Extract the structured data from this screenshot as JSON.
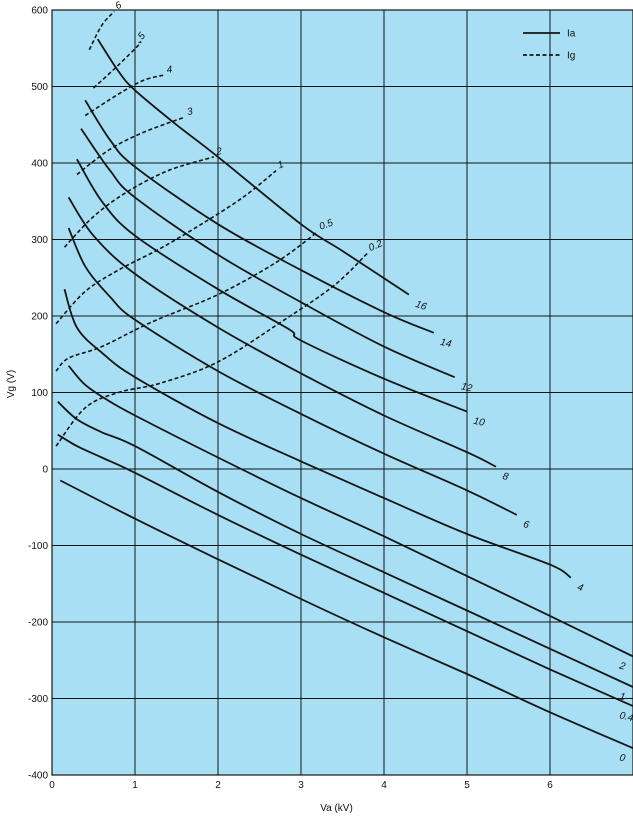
{
  "chart_data": {
    "type": "line",
    "title": "",
    "xlabel": "Va (kV)",
    "ylabel": "Vg (V)",
    "xlim": [
      0,
      7
    ],
    "ylim": [
      -400,
      600
    ],
    "x_ticks": [
      "0",
      "1",
      "2",
      "3",
      "4",
      "5",
      "6"
    ],
    "y_ticks": [
      "-400",
      "-300",
      "-200",
      "-100",
      "0",
      "100",
      "200",
      "300",
      "400",
      "500",
      "600"
    ],
    "grid": true,
    "legend_position": "top-right",
    "colors": {
      "plot_background": "#a8dff5",
      "line": "#151515",
      "grid": "#151515"
    },
    "legend": [
      {
        "label": "Ia",
        "style": "solid"
      },
      {
        "label": "Ig",
        "style": "dashed"
      }
    ],
    "series": [
      {
        "family": "Ia",
        "label": "0",
        "style": "solid",
        "points": [
          [
            0.1,
            -15
          ],
          [
            1,
            -65
          ],
          [
            2,
            -118
          ],
          [
            3,
            -170
          ],
          [
            4,
            -220
          ],
          [
            5,
            -268
          ],
          [
            6,
            -318
          ],
          [
            7,
            -365
          ]
        ]
      },
      {
        "family": "Ia",
        "label": "0.4",
        "style": "solid",
        "points": [
          [
            0.07,
            45
          ],
          [
            0.3,
            30
          ],
          [
            0.6,
            15
          ],
          [
            1,
            -5
          ],
          [
            2,
            -60
          ],
          [
            3,
            -112
          ],
          [
            4,
            -162
          ],
          [
            5,
            -212
          ],
          [
            6,
            -262
          ],
          [
            7,
            -310
          ]
        ]
      },
      {
        "family": "Ia",
        "label": "1",
        "style": "solid",
        "points": [
          [
            0.07,
            88
          ],
          [
            0.3,
            65
          ],
          [
            0.6,
            48
          ],
          [
            1,
            30
          ],
          [
            2,
            -30
          ],
          [
            3,
            -85
          ],
          [
            4,
            -135
          ],
          [
            5,
            -185
          ],
          [
            6,
            -235
          ],
          [
            7,
            -285
          ]
        ]
      },
      {
        "family": "Ia",
        "label": "2",
        "style": "solid",
        "points": [
          [
            0.2,
            135
          ],
          [
            0.4,
            110
          ],
          [
            0.7,
            88
          ],
          [
            1,
            70
          ],
          [
            2,
            15
          ],
          [
            3,
            -38
          ],
          [
            4,
            -88
          ],
          [
            5,
            -140
          ],
          [
            6,
            -192
          ],
          [
            7,
            -245
          ]
        ]
      },
      {
        "family": "Ia",
        "label": "4",
        "style": "solid",
        "points": [
          [
            0.15,
            235
          ],
          [
            0.3,
            185
          ],
          [
            0.6,
            152
          ],
          [
            1,
            120
          ],
          [
            2,
            60
          ],
          [
            3,
            10
          ],
          [
            4,
            -38
          ],
          [
            5,
            -85
          ],
          [
            6,
            -125
          ],
          [
            6.25,
            -142
          ]
        ]
      },
      {
        "family": "Ia",
        "label": "6",
        "style": "solid",
        "points": [
          [
            0.2,
            315
          ],
          [
            0.4,
            265
          ],
          [
            0.7,
            225
          ],
          [
            1,
            195
          ],
          [
            2,
            128
          ],
          [
            3,
            72
          ],
          [
            4,
            20
          ],
          [
            5,
            -28
          ],
          [
            5.6,
            -60
          ]
        ]
      },
      {
        "family": "Ia",
        "label": "8",
        "style": "solid",
        "points": [
          [
            0.2,
            355
          ],
          [
            0.5,
            305
          ],
          [
            1,
            255
          ],
          [
            2,
            185
          ],
          [
            3,
            125
          ],
          [
            4,
            70
          ],
          [
            5,
            22
          ],
          [
            5.35,
            3
          ]
        ]
      },
      {
        "family": "Ia",
        "label": "10",
        "style": "solid",
        "points": [
          [
            0.3,
            405
          ],
          [
            0.6,
            350
          ],
          [
            1,
            305
          ],
          [
            2,
            235
          ],
          [
            2.85,
            183
          ],
          [
            3,
            168
          ],
          [
            4,
            118
          ],
          [
            5,
            75
          ]
        ]
      },
      {
        "family": "Ia",
        "label": "12",
        "style": "solid",
        "points": [
          [
            0.35,
            445
          ],
          [
            0.7,
            390
          ],
          [
            1,
            355
          ],
          [
            2,
            280
          ],
          [
            3,
            218
          ],
          [
            4,
            160
          ],
          [
            4.85,
            120
          ]
        ]
      },
      {
        "family": "Ia",
        "label": "14",
        "style": "solid",
        "points": [
          [
            0.4,
            482
          ],
          [
            0.7,
            430
          ],
          [
            1,
            395
          ],
          [
            2,
            320
          ],
          [
            3,
            260
          ],
          [
            4,
            205
          ],
          [
            4.6,
            178
          ]
        ]
      },
      {
        "family": "Ia",
        "label": "16",
        "style": "solid",
        "points": [
          [
            0.55,
            562
          ],
          [
            0.8,
            520
          ],
          [
            1,
            495
          ],
          [
            1.5,
            450
          ],
          [
            2,
            408
          ],
          [
            3,
            320
          ],
          [
            3.5,
            285
          ],
          [
            4.3,
            228
          ]
        ]
      },
      {
        "family": "Ig",
        "label": "0.2",
        "style": "dashed",
        "points": [
          [
            0.05,
            30
          ],
          [
            0.4,
            80
          ],
          [
            0.8,
            100
          ],
          [
            1.3,
            112
          ],
          [
            2,
            140
          ],
          [
            2.8,
            195
          ],
          [
            3.4,
            240
          ],
          [
            3.8,
            282
          ]
        ]
      },
      {
        "family": "Ig",
        "label": "0.5",
        "style": "dashed",
        "points": [
          [
            0.05,
            128
          ],
          [
            0.2,
            145
          ],
          [
            0.6,
            160
          ],
          [
            1.2,
            192
          ],
          [
            2,
            228
          ],
          [
            2.7,
            270
          ],
          [
            3.2,
            310
          ]
        ]
      },
      {
        "family": "Ig",
        "label": "1",
        "style": "dashed",
        "points": [
          [
            0.05,
            190
          ],
          [
            0.4,
            232
          ],
          [
            0.8,
            260
          ],
          [
            1.3,
            288
          ],
          [
            1.8,
            320
          ],
          [
            2.3,
            355
          ],
          [
            2.7,
            390
          ]
        ]
      },
      {
        "family": "Ig",
        "label": "2",
        "style": "dashed",
        "points": [
          [
            0.15,
            290
          ],
          [
            0.5,
            330
          ],
          [
            0.9,
            362
          ],
          [
            1.4,
            390
          ],
          [
            1.95,
            408
          ]
        ]
      },
      {
        "family": "Ig",
        "label": "3",
        "style": "dashed",
        "points": [
          [
            0.3,
            385
          ],
          [
            0.7,
            418
          ],
          [
            1.1,
            440
          ],
          [
            1.6,
            460
          ]
        ]
      },
      {
        "family": "Ig",
        "label": "4",
        "style": "dashed",
        "points": [
          [
            0.4,
            462
          ],
          [
            0.8,
            490
          ],
          [
            1.1,
            508
          ],
          [
            1.35,
            515
          ]
        ]
      },
      {
        "family": "Ig",
        "label": "5",
        "style": "dashed",
        "points": [
          [
            0.5,
            498
          ],
          [
            0.8,
            528
          ],
          [
            1.05,
            555
          ],
          [
            1.05,
            558
          ]
        ]
      },
      {
        "family": "Ig",
        "label": "6",
        "style": "dashed",
        "points": [
          [
            0.45,
            548
          ],
          [
            0.6,
            580
          ],
          [
            0.75,
            598
          ]
        ]
      }
    ]
  }
}
